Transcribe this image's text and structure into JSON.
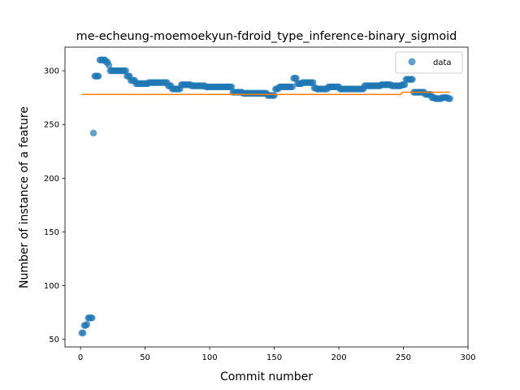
{
  "chart_data": {
    "type": "scatter",
    "title": "me-echeung-moemoekyun-fdroid_type_inference-binary_sigmoid",
    "xlabel": "Commit number",
    "ylabel": "Number of instance of a feature",
    "xlim": [
      -12,
      300
    ],
    "ylim": [
      43,
      322
    ],
    "xticks": [
      0,
      50,
      100,
      150,
      200,
      250,
      300
    ],
    "yticks": [
      50,
      100,
      150,
      200,
      250,
      300
    ],
    "grid": false,
    "legend_position": "top-right",
    "colors": {
      "data": "#1f77b4",
      "fit": "#ff7f0e"
    },
    "series": [
      {
        "name": "data",
        "kind": "scatter",
        "segments": [
          {
            "x": [
              1,
              2
            ],
            "y": [
              56,
              56
            ]
          },
          {
            "x": [
              3,
              4,
              5
            ],
            "y": [
              63,
              63,
              64
            ]
          },
          {
            "x": [
              6,
              7,
              8,
              9
            ],
            "y": [
              70,
              70,
              70,
              70
            ]
          },
          {
            "x": [
              10
            ],
            "y": [
              242
            ]
          },
          {
            "x": [
              11,
              14
            ],
            "y": [
              295,
              295
            ]
          },
          {
            "x": [
              15,
              19
            ],
            "y": [
              310,
              310
            ]
          },
          {
            "x": [
              20,
              21
            ],
            "y": [
              308,
              308
            ]
          },
          {
            "x": [
              22
            ],
            "y": [
              305
            ]
          },
          {
            "x": [
              23,
              35
            ],
            "y": [
              300,
              300
            ]
          },
          {
            "x": [
              36,
              38
            ],
            "y": [
              295,
              295
            ]
          },
          {
            "x": [
              39,
              42
            ],
            "y": [
              291,
              291
            ]
          },
          {
            "x": [
              43,
              52
            ],
            "y": [
              288,
              288
            ]
          },
          {
            "x": [
              53,
              67
            ],
            "y": [
              289,
              289
            ]
          },
          {
            "x": [
              68,
              70
            ],
            "y": [
              286,
              286
            ]
          },
          {
            "x": [
              71,
              77
            ],
            "y": [
              283,
              283
            ]
          },
          {
            "x": [
              78,
              85
            ],
            "y": [
              287,
              287
            ]
          },
          {
            "x": [
              86,
              96
            ],
            "y": [
              286,
              286
            ]
          },
          {
            "x": [
              97,
              117
            ],
            "y": [
              285,
              285
            ]
          },
          {
            "x": [
              118,
              125
            ],
            "y": [
              280,
              280
            ]
          },
          {
            "x": [
              126,
              144
            ],
            "y": [
              279,
              279
            ]
          },
          {
            "x": [
              145,
              150
            ],
            "y": [
              277,
              277
            ]
          },
          {
            "x": [
              151,
              153
            ],
            "y": [
              283,
              283
            ]
          },
          {
            "x": [
              154,
              164
            ],
            "y": [
              285,
              285
            ]
          },
          {
            "x": [
              165,
              167
            ],
            "y": [
              293,
              293
            ]
          },
          {
            "x": [
              168,
              171
            ],
            "y": [
              288,
              288
            ]
          },
          {
            "x": [
              172,
              180
            ],
            "y": [
              289,
              289
            ]
          },
          {
            "x": [
              181,
              182
            ],
            "y": [
              284,
              284
            ]
          },
          {
            "x": [
              183,
              191
            ],
            "y": [
              283,
              283
            ]
          },
          {
            "x": [
              192,
              200
            ],
            "y": [
              285,
              285
            ]
          },
          {
            "x": [
              201,
              219
            ],
            "y": [
              283,
              283
            ]
          },
          {
            "x": [
              220,
              232
            ],
            "y": [
              286,
              286
            ]
          },
          {
            "x": [
              233,
              240
            ],
            "y": [
              287,
              287
            ]
          },
          {
            "x": [
              241,
              248
            ],
            "y": [
              286,
              286
            ]
          },
          {
            "x": [
              249,
              251
            ],
            "y": [
              287,
              287
            ]
          },
          {
            "x": [
              252,
              257
            ],
            "y": [
              292,
              292
            ]
          },
          {
            "x": [
              258,
              266
            ],
            "y": [
              280,
              280
            ]
          },
          {
            "x": [
              267,
              271
            ],
            "y": [
              278,
              278
            ]
          },
          {
            "x": [
              272,
              274
            ],
            "y": [
              275,
              275
            ]
          },
          {
            "x": [
              275,
              279
            ],
            "y": [
              274,
              274
            ]
          },
          {
            "x": [
              280,
              284
            ],
            "y": [
              275,
              275
            ]
          },
          {
            "x": [
              285,
              286
            ],
            "y": [
              274,
              274
            ]
          }
        ]
      },
      {
        "name": "",
        "kind": "line",
        "x": [
          1,
          248,
          249,
          286
        ],
        "y": [
          278,
          278,
          280,
          280
        ]
      }
    ]
  }
}
